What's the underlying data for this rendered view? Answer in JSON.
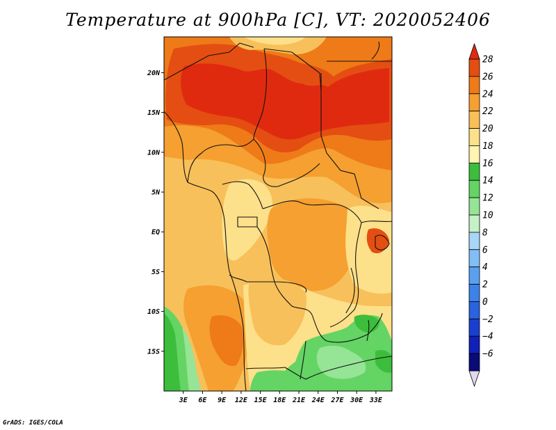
{
  "title": "Temperature at 900hPa [C], VT: 2020052406",
  "credit": "GrADS: IGES/COLA",
  "chart_data": {
    "type": "heatmap",
    "variable": "Temperature at 900hPa",
    "units": "C",
    "valid_time": "2020052406",
    "lon_range": [
      0,
      35.5
    ],
    "lat_range": [
      -20,
      24.5
    ],
    "xlabels": [
      "3E",
      "6E",
      "9E",
      "12E",
      "15E",
      "18E",
      "21E",
      "24E",
      "27E",
      "30E",
      "33E"
    ],
    "xticks": [
      3,
      6,
      9,
      12,
      15,
      18,
      21,
      24,
      27,
      30,
      33
    ],
    "ylabels": [
      "20N",
      "15N",
      "10N",
      "5N",
      "EQ",
      "5S",
      "10S",
      "15S"
    ],
    "yticks": [
      20,
      15,
      10,
      5,
      0,
      -5,
      -10,
      -15
    ],
    "colorbar": {
      "levels": [
        -6,
        -4,
        -2,
        0,
        2,
        4,
        6,
        8,
        10,
        12,
        14,
        16,
        18,
        20,
        22,
        24,
        26,
        28
      ],
      "labels": [
        "28",
        "26",
        "24",
        "22",
        "20",
        "18",
        "16",
        "14",
        "12",
        "10",
        "8",
        "6",
        "4",
        "2",
        "0",
        "−2",
        "−4",
        "−6"
      ],
      "colors": [
        "#e0d8f0",
        "#0a0a78",
        "#1020b8",
        "#1a3fd0",
        "#2a62e0",
        "#3c82e8",
        "#5aa0ef",
        "#82bef5",
        "#a8d6f8",
        "#c6f0c6",
        "#96e496",
        "#64d464",
        "#3cbe3c",
        "#fff4b0",
        "#fde08a",
        "#f8c05a",
        "#f5a030",
        "#ee7a18",
        "#e44e12",
        "#e02a10"
      ]
    },
    "regions": {
      "sahel_north": "24-28",
      "central_africa": "20-24",
      "angola_coast": "22-26",
      "south_central": "14-20"
    }
  }
}
